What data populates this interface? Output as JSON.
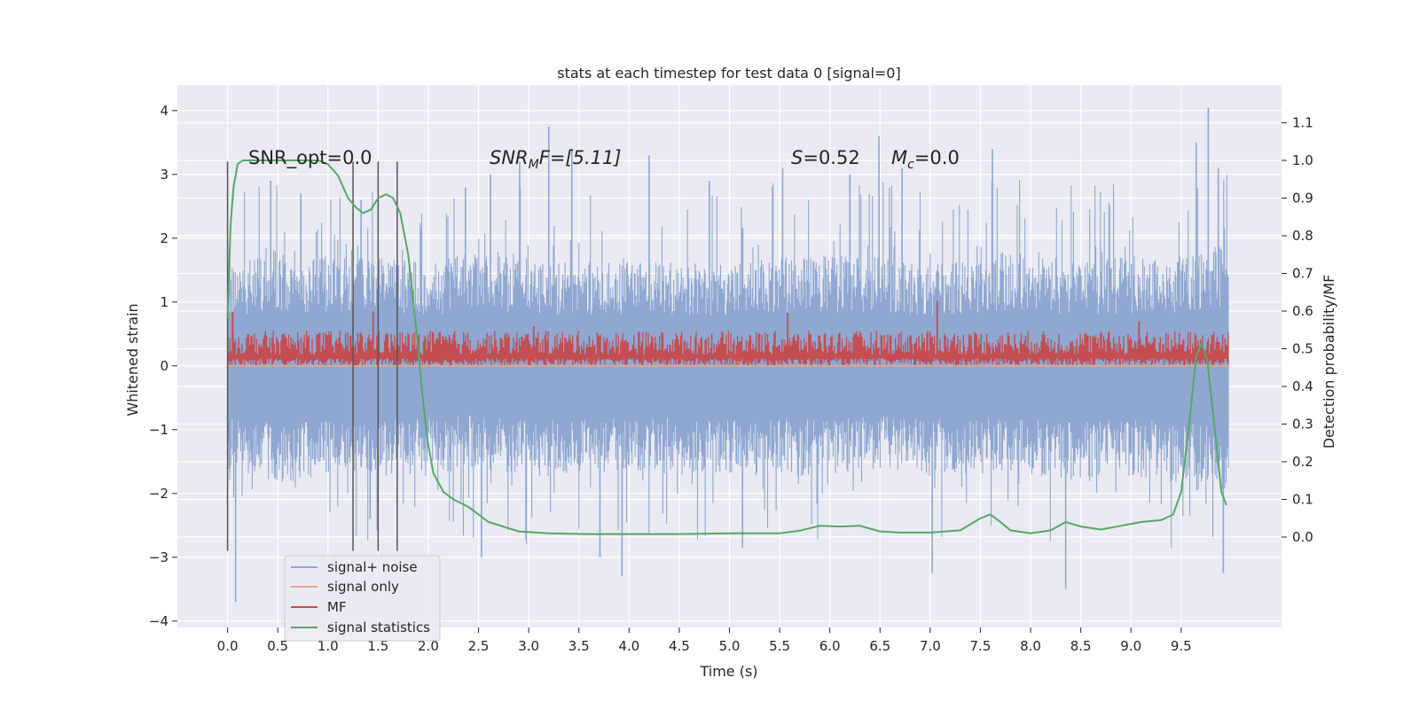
{
  "chart_data": {
    "type": "line",
    "title": "stats at each timestep for test data 0 [signal=0]",
    "xlabel": "Time (s)",
    "ylabel": "Whitened strain",
    "y2label": "Detection probability/MF",
    "xlim": [
      -0.5,
      10.5
    ],
    "ylim": [
      -4.1,
      4.4
    ],
    "y2lim": [
      -0.24,
      1.2
    ],
    "xticks": [
      "0.0",
      "0.5",
      "1.0",
      "1.5",
      "2.0",
      "2.5",
      "3.0",
      "3.5",
      "4.0",
      "4.5",
      "5.0",
      "5.5",
      "6.0",
      "6.5",
      "7.0",
      "7.5",
      "8.0",
      "8.5",
      "9.0",
      "9.5"
    ],
    "yticks": [
      4,
      3,
      2,
      1,
      0,
      -1,
      -2,
      -3,
      -4
    ],
    "y2ticks": [
      "1.1",
      "1.0",
      "0.9",
      "0.8",
      "0.7",
      "0.6",
      "0.5",
      "0.4",
      "0.3",
      "0.2",
      "0.1",
      "0.0"
    ],
    "grid": true,
    "legend_placement": "lower-left",
    "annotations": {
      "snr_opt": "SNR_opt=0.0",
      "snr_mf_base": "SNR",
      "snr_mf_sub": "M",
      "snr_mf_rest": "F=[5.11]",
      "s_label": "S",
      "s_value": "=0.52",
      "mc_base": "M",
      "mc_sub": "c",
      "mc_value": "=0.0"
    },
    "vlines_x": [
      0.0,
      1.25,
      1.5,
      1.69
    ],
    "series": [
      {
        "name": "signal+ noise",
        "color": "#8fa7d1",
        "axis": "left",
        "x_range": [
          0.0,
          9.97
        ],
        "envelope_upper": [
          1.4,
          1.6,
          1.5,
          1.5,
          1.4,
          1.6,
          1.5,
          1.4,
          1.5,
          1.4,
          1.4,
          1.5,
          1.5,
          1.5,
          1.4,
          1.5,
          1.6,
          1.4,
          1.5,
          1.5,
          1.7
        ],
        "envelope_lower": [
          -1.4,
          -1.6,
          -1.5,
          -1.5,
          -1.5,
          -1.4,
          -1.5,
          -1.5,
          -1.4,
          -1.5,
          -1.5,
          -1.5,
          -1.5,
          -1.4,
          -1.5,
          -1.5,
          -1.5,
          -1.6,
          -1.5,
          -1.6,
          -1.7
        ],
        "spikes": [
          {
            "x": 0.08,
            "y": -3.7
          },
          {
            "x": 0.43,
            "y": 2.9
          },
          {
            "x": 0.73,
            "y": 2.7
          },
          {
            "x": 1.33,
            "y": 2.6
          },
          {
            "x": 1.42,
            "y": -2.4
          },
          {
            "x": 2.37,
            "y": 2.8
          },
          {
            "x": 2.53,
            "y": -3.0
          },
          {
            "x": 2.62,
            "y": 3.0
          },
          {
            "x": 2.91,
            "y": 3.2
          },
          {
            "x": 3.2,
            "y": 3.75
          },
          {
            "x": 3.43,
            "y": 3.4
          },
          {
            "x": 3.71,
            "y": -3.0
          },
          {
            "x": 3.93,
            "y": -3.3
          },
          {
            "x": 4.2,
            "y": 3.3
          },
          {
            "x": 4.8,
            "y": 2.9
          },
          {
            "x": 5.13,
            "y": -2.85
          },
          {
            "x": 5.53,
            "y": 3.1
          },
          {
            "x": 6.2,
            "y": 3.0
          },
          {
            "x": 6.49,
            "y": 3.6
          },
          {
            "x": 6.72,
            "y": 3.1
          },
          {
            "x": 7.02,
            "y": -3.25
          },
          {
            "x": 7.62,
            "y": 3.4
          },
          {
            "x": 8.35,
            "y": -3.5
          },
          {
            "x": 9.65,
            "y": 3.5
          },
          {
            "x": 9.77,
            "y": 4.05
          },
          {
            "x": 9.87,
            "y": 3.1
          },
          {
            "x": 9.92,
            "y": -3.25
          }
        ]
      },
      {
        "name": "signal only",
        "color": "#e8a88c",
        "axis": "left",
        "x": [
          0.0,
          9.97
        ],
        "y": [
          0.0,
          0.0
        ]
      },
      {
        "name": "MF",
        "color": "#c44e52",
        "axis": "left",
        "x_range": [
          0.0,
          9.97
        ],
        "band_upper": 0.5,
        "band_lower": 0.0,
        "spikes": [
          {
            "x": 0.05,
            "y": 0.85
          },
          {
            "x": 1.45,
            "y": 0.85
          },
          {
            "x": 3.05,
            "y": 0.62
          },
          {
            "x": 5.58,
            "y": 0.83
          },
          {
            "x": 7.07,
            "y": 1.02
          },
          {
            "x": 9.08,
            "y": 0.7
          }
        ]
      },
      {
        "name": "signal statistics",
        "color": "#55a868",
        "axis": "right",
        "x": [
          0.0,
          0.03,
          0.06,
          0.1,
          0.15,
          0.2,
          0.3,
          0.5,
          0.7,
          0.9,
          1.0,
          1.1,
          1.2,
          1.28,
          1.35,
          1.43,
          1.5,
          1.58,
          1.65,
          1.72,
          1.8,
          1.88,
          1.94,
          1.99,
          2.05,
          2.15,
          2.25,
          2.4,
          2.6,
          2.9,
          3.2,
          3.6,
          4.0,
          4.5,
          5.0,
          5.5,
          5.7,
          5.9,
          6.1,
          6.3,
          6.5,
          6.7,
          7.0,
          7.3,
          7.5,
          7.6,
          7.7,
          7.8,
          8.0,
          8.2,
          8.35,
          8.5,
          8.7,
          8.9,
          9.1,
          9.3,
          9.42,
          9.5,
          9.58,
          9.65,
          9.7,
          9.76,
          9.83,
          9.9,
          9.95
        ],
        "y": [
          0.58,
          0.83,
          0.93,
          0.99,
          1.0,
          1.0,
          1.0,
          1.0,
          1.0,
          1.0,
          0.99,
          0.96,
          0.9,
          0.875,
          0.86,
          0.87,
          0.9,
          0.91,
          0.9,
          0.86,
          0.75,
          0.55,
          0.38,
          0.26,
          0.17,
          0.12,
          0.1,
          0.08,
          0.04,
          0.015,
          0.01,
          0.008,
          0.008,
          0.008,
          0.01,
          0.01,
          0.017,
          0.03,
          0.028,
          0.03,
          0.015,
          0.012,
          0.012,
          0.018,
          0.05,
          0.06,
          0.04,
          0.018,
          0.01,
          0.018,
          0.04,
          0.028,
          0.02,
          0.03,
          0.04,
          0.045,
          0.06,
          0.12,
          0.3,
          0.48,
          0.515,
          0.47,
          0.3,
          0.12,
          0.085
        ]
      }
    ]
  }
}
